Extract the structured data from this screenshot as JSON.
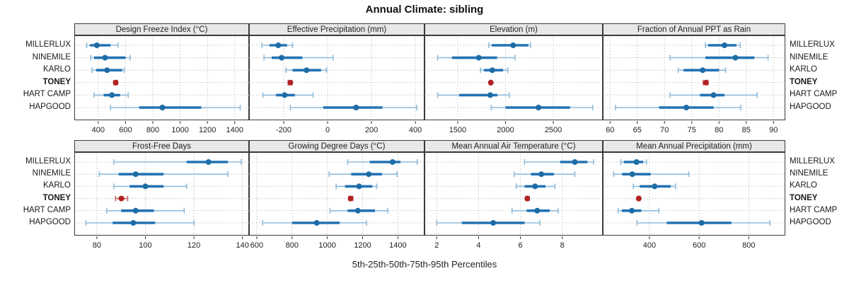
{
  "title": "Annual Climate: sibling",
  "xlabel": "5th-25th-50th-75th-95th Percentiles",
  "stations": [
    "MILLERLUX",
    "NINEMILE",
    "KARLO",
    "TONEY",
    "HART CAMP",
    "HAPGOOD"
  ],
  "highlight_station": "TONEY",
  "colors": {
    "interval_main": "#2272b4",
    "interval_light": "#8fbcdb",
    "median_dot": "#1d6ca6",
    "highlight_main": "#b12121",
    "highlight_light": "#c46a6a",
    "grid": "#c4c4c4",
    "panel_border": "#3a3a3a",
    "strip_bg": "#e8e8e8"
  },
  "chart_data": {
    "type": "dotplot-interval",
    "orientation": "horizontal",
    "percentiles": [
      5,
      25,
      50,
      75,
      95
    ],
    "grid": "dotted",
    "panels": [
      {
        "label": "Design Freeze Index (°C)",
        "row": 0,
        "col": 0,
        "xlim": [
          230,
          1510
        ],
        "ticks": [
          400,
          600,
          800,
          1000,
          1200,
          1400
        ],
        "values": {
          "MILLERLUX": [
            315,
            340,
            390,
            490,
            545
          ],
          "NINEMILE": [
            345,
            370,
            450,
            600,
            635
          ],
          "KARLO": [
            355,
            385,
            465,
            575,
            590
          ],
          "TONEY": [
            515,
            522,
            528,
            535,
            542
          ],
          "HART CAMP": [
            370,
            440,
            500,
            560,
            620
          ],
          "HAPGOOD": [
            490,
            700,
            870,
            1155,
            1440
          ]
        }
      },
      {
        "label": "Effective Precipitation (mm)",
        "row": 0,
        "col": 1,
        "xlim": [
          -355,
          445
        ],
        "ticks": [
          -200,
          0,
          200,
          400
        ],
        "values": {
          "MILLERLUX": [
            -300,
            -265,
            -225,
            -185,
            -160
          ],
          "NINEMILE": [
            -290,
            -255,
            -210,
            -115,
            25
          ],
          "KARLO": [
            -190,
            -160,
            -96,
            -30,
            -5
          ],
          "TONEY": [
            -180,
            -174,
            -170,
            -166,
            -162
          ],
          "HART CAMP": [
            -295,
            -235,
            -196,
            -149,
            -66
          ],
          "HAPGOOD": [
            -170,
            -20,
            130,
            250,
            406
          ]
        }
      },
      {
        "label": "Elevation (m)",
        "row": 0,
        "col": 2,
        "xlim": [
          1160,
          3025
        ],
        "ticks": [
          1500,
          2000,
          2500
        ],
        "values": {
          "MILLERLUX": [
            1825,
            1856,
            2080,
            2240,
            2262
          ],
          "NINEMILE": [
            1290,
            1440,
            1720,
            1912,
            2100
          ],
          "KARLO": [
            1738,
            1775,
            1862,
            1975,
            2025
          ],
          "TONEY": [
            1838,
            1842,
            1846,
            1849,
            1852
          ],
          "HART CAMP": [
            1290,
            1515,
            1840,
            1915,
            2040
          ],
          "HAPGOOD": [
            1850,
            2000,
            2345,
            2675,
            2912
          ]
        }
      },
      {
        "label": "Fraction of Annual PPT as Rain",
        "row": 0,
        "col": 3,
        "xlim": [
          58.8,
          92.3
        ],
        "ticks": [
          60,
          65,
          70,
          75,
          80,
          85,
          90
        ],
        "values": {
          "MILLERLUX": [
            77.5,
            78,
            81,
            83.2,
            83.9
          ],
          "NINEMILE": [
            71,
            77.5,
            83,
            86.5,
            89
          ],
          "KARLO": [
            72.5,
            73.5,
            77,
            80,
            81.2
          ],
          "TONEY": [
            77.1,
            77.4,
            77.6,
            77.8,
            78
          ],
          "HART CAMP": [
            71,
            76.5,
            79,
            81,
            87
          ],
          "HAPGOOD": [
            61,
            69,
            74,
            79,
            84
          ]
        }
      },
      {
        "label": "Frost-Free Days",
        "row": 1,
        "col": 0,
        "xlim": [
          71,
          143
        ],
        "ticks": [
          80,
          100,
          120,
          140
        ],
        "values": {
          "MILLERLUX": [
            87,
            117,
            126,
            134,
            139.5
          ],
          "NINEMILE": [
            81,
            89,
            96,
            107.5,
            134
          ],
          "KARLO": [
            87,
            93.5,
            100,
            107.5,
            117
          ],
          "TONEY": [
            87.7,
            89,
            90.1,
            91.3,
            92.7
          ],
          "HART CAMP": [
            84,
            90,
            96,
            103.5,
            116
          ],
          "HAPGOOD": [
            75.5,
            86.5,
            95,
            104,
            120
          ]
        }
      },
      {
        "label": "Growing Degree Days (°C)",
        "row": 1,
        "col": 1,
        "xlim": [
          560,
          1555
        ],
        "ticks": [
          600,
          800,
          1000,
          1200,
          1400
        ],
        "values": {
          "MILLERLUX": [
            1115,
            1240,
            1370,
            1415,
            1510
          ],
          "NINEMILE": [
            1010,
            1135,
            1235,
            1310,
            1395
          ],
          "KARLO": [
            1050,
            1100,
            1180,
            1255,
            1280
          ],
          "TONEY": [
            1122,
            1128,
            1132,
            1138,
            1145
          ],
          "HART CAMP": [
            1015,
            1115,
            1173,
            1270,
            1343
          ],
          "HAPGOOD": [
            633,
            800,
            940,
            1070,
            1222
          ]
        }
      },
      {
        "label": "Mean Annual Air Temperature (°C)",
        "row": 1,
        "col": 2,
        "xlim": [
          1.45,
          9.97
        ],
        "ticks": [
          2,
          4,
          6,
          8
        ],
        "values": {
          "MILLERLUX": [
            6.2,
            7.9,
            8.6,
            9.2,
            9.5
          ],
          "NINEMILE": [
            5.7,
            6.5,
            7.0,
            7.6,
            8.6
          ],
          "KARLO": [
            5.8,
            6.2,
            6.7,
            7.2,
            7.65
          ],
          "TONEY": [
            6.25,
            6.3,
            6.33,
            6.38,
            6.42
          ],
          "HART CAMP": [
            5.6,
            6.3,
            6.8,
            7.4,
            7.8
          ],
          "HAPGOOD": [
            2.0,
            3.2,
            4.7,
            6.2,
            6.93
          ]
        }
      },
      {
        "label": "Mean Annual Precipitation (mm)",
        "row": 1,
        "col": 3,
        "xlim": [
          215,
          950
        ],
        "ticks": [
          400,
          600,
          800
        ],
        "values": {
          "MILLERLUX": [
            285,
            297,
            348,
            375,
            388
          ],
          "NINEMILE": [
            256,
            290,
            331,
            405,
            559
          ],
          "KARLO": [
            335,
            361,
            421,
            486,
            505
          ],
          "TONEY": [
            352,
            355,
            357,
            359,
            362
          ],
          "HART CAMP": [
            274,
            289,
            329,
            367,
            438
          ],
          "HAPGOOD": [
            350,
            470,
            610,
            730,
            885
          ]
        }
      }
    ]
  }
}
